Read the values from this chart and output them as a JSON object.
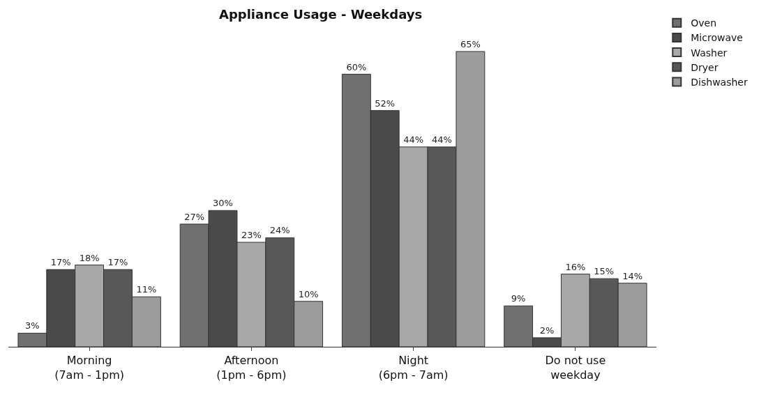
{
  "chart_data": {
    "type": "bar",
    "title": "Appliance Usage - Weekdays",
    "categories": [
      "Morning\n(7am - 1pm)",
      "Afternoon\n(1pm - 6pm)",
      "Night\n(6pm - 7am)",
      "Do not use\nweekday"
    ],
    "series": [
      {
        "name": "Oven",
        "color": "#707070",
        "values": [
          3,
          27,
          60,
          9
        ],
        "value_labels": [
          "3%",
          "27%",
          "60%",
          "9%"
        ]
      },
      {
        "name": "Microwave",
        "color": "#4a4a4a",
        "values": [
          17,
          30,
          52,
          2
        ],
        "value_labels": [
          "17%",
          "30%",
          "52%",
          "2%"
        ]
      },
      {
        "name": "Washer",
        "color": "#a8a8a8",
        "values": [
          18,
          23,
          44,
          16
        ],
        "value_labels": [
          "18%",
          "23%",
          "44%",
          "16%"
        ]
      },
      {
        "name": "Dryer",
        "color": "#585858",
        "values": [
          17,
          24,
          44,
          15
        ],
        "value_labels": [
          "17%",
          "24%",
          "44%",
          "15%"
        ]
      },
      {
        "name": "Dishwasher",
        "color": "#9c9c9c",
        "values": [
          11,
          10,
          65,
          14
        ],
        "value_labels": [
          "11%",
          "10%",
          "65%",
          "14%"
        ]
      }
    ],
    "legend": "top right",
    "tick_labels": "x"
  }
}
